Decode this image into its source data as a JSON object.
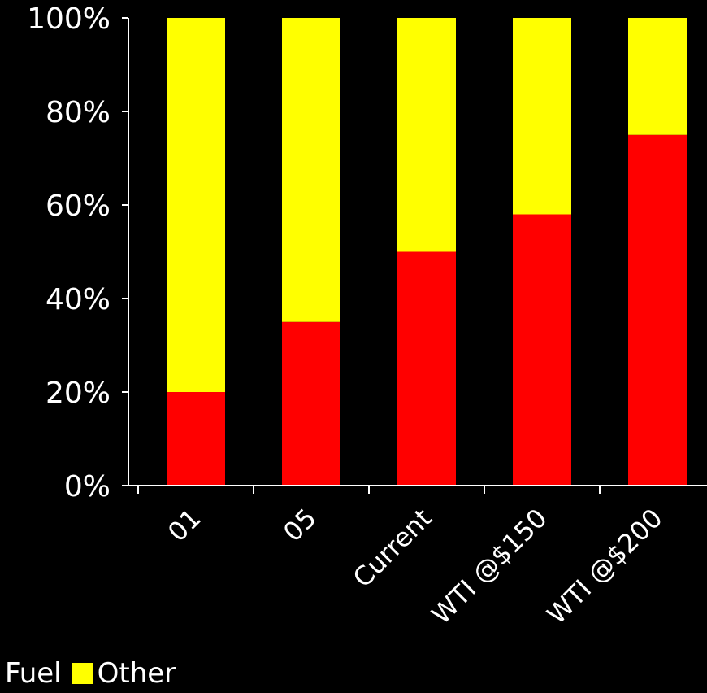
{
  "chart_data": {
    "type": "bar",
    "stacked": true,
    "categories": [
      "01",
      "05",
      "Current",
      "WTI @$150",
      "WTI @$200"
    ],
    "series": [
      {
        "name": "Fuel",
        "color": "#ff0000",
        "values": [
          20,
          35,
          50,
          58,
          75
        ]
      },
      {
        "name": "Other",
        "color": "#ffff00",
        "values": [
          80,
          65,
          50,
          42,
          25
        ]
      }
    ],
    "y_ticks": [
      "0%",
      "20%",
      "40%",
      "60%",
      "80%",
      "100%"
    ],
    "ylim": [
      0,
      100
    ],
    "grid": false,
    "legend_position": "bottom-left",
    "colors": {
      "background": "#000000",
      "axis": "#ffffff",
      "text": "#ffffff"
    }
  },
  "legend": {
    "fuel_label": "Fuel",
    "other_label": "Other"
  }
}
